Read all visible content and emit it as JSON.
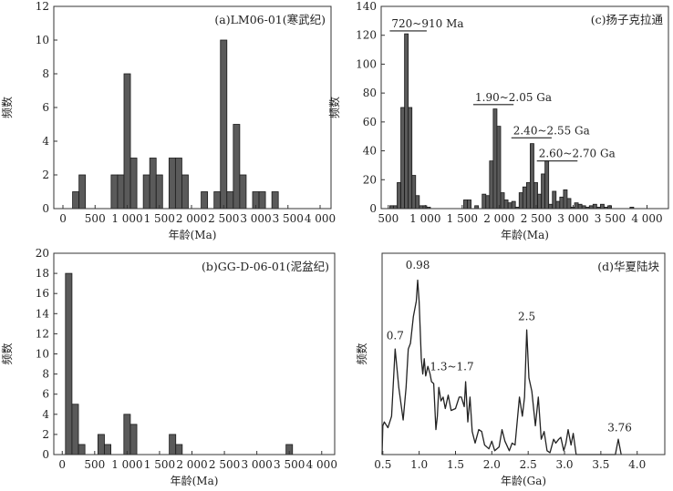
{
  "chart_data": [
    {
      "id": "a",
      "type": "bar",
      "title": "(a)LM06-01(寒武纪)",
      "xlabel": "年龄(Ma)",
      "ylabel": "频数",
      "xlim": [
        -142,
        4170
      ],
      "ylim": [
        0,
        12
      ],
      "bin_width": 100,
      "xticks": [
        0,
        500,
        1000,
        1500,
        2000,
        2500,
        3000,
        3500,
        4000
      ],
      "xtick_labels": [
        "0",
        "500",
        "1 000",
        "1 500",
        "2 000",
        "2 500",
        "3 000",
        "3 500",
        "4 000"
      ],
      "yticks": [
        0,
        2,
        4,
        6,
        8,
        10,
        12
      ],
      "x": [
        200,
        300,
        800,
        900,
        1000,
        1100,
        1300,
        1400,
        1500,
        1700,
        1800,
        1900,
        2200,
        2400,
        2500,
        2600,
        2700,
        2800,
        3000,
        3100,
        3300
      ],
      "values": [
        1,
        2,
        2,
        2,
        8,
        3,
        2,
        3,
        2,
        3,
        3,
        2,
        1,
        1,
        10,
        1,
        5,
        2,
        1,
        1,
        1
      ]
    },
    {
      "id": "c",
      "type": "bar",
      "title": "(c)扬子克拉通",
      "xlabel": "年龄(Ma)",
      "ylabel": "频数",
      "xlim": [
        404,
        4290
      ],
      "ylim": [
        0,
        140
      ],
      "bin_width": 50,
      "xticks": [
        500,
        1000,
        1500,
        2000,
        2500,
        3000,
        3500,
        4000
      ],
      "xtick_labels": [
        "500",
        "1 000",
        "1 500",
        "2 000",
        "2 500",
        "3 000",
        "3 500",
        "4 000"
      ],
      "yticks": [
        0,
        20,
        40,
        60,
        80,
        100,
        120,
        140
      ],
      "x": [
        545,
        595,
        645,
        695,
        745,
        795,
        845,
        895,
        945,
        995,
        1045,
        1545,
        1595,
        1695,
        1795,
        1845,
        1895,
        1945,
        1995,
        2045,
        2095,
        2145,
        2195,
        2245,
        2295,
        2345,
        2395,
        2445,
        2495,
        2545,
        2595,
        2645,
        2695,
        2745,
        2795,
        2845,
        2895,
        2945,
        2995,
        3045,
        3095,
        3145,
        3195,
        3245,
        3295,
        3345,
        3395,
        3445,
        3495,
        3795
      ],
      "values": [
        2,
        2,
        18,
        70,
        121,
        70,
        23,
        9,
        2,
        2,
        1,
        6,
        6,
        2,
        10,
        9,
        33,
        69,
        57,
        11,
        6,
        4,
        5,
        1,
        11,
        15,
        18,
        45,
        18,
        10,
        24,
        33,
        3,
        12,
        5,
        8,
        13,
        7,
        1,
        4,
        3,
        2,
        1,
        2,
        3,
        1,
        3,
        1,
        2,
        1
      ],
      "annotations": [
        {
          "text": "720~910 Ma",
          "range": [
            520,
            1020
          ],
          "y": 123
        },
        {
          "text": "1.90~2.05 Ga",
          "range": [
            1650,
            2195
          ],
          "y": 72
        },
        {
          "text": "2.40~2.55 Ga",
          "range": [
            2165,
            2710
          ],
          "y": 49
        },
        {
          "text": "2.60~2.70 Ga",
          "range": [
            2510,
            3060
          ],
          "y": 33
        }
      ]
    },
    {
      "id": "b",
      "type": "bar",
      "title": "(b)GG-D-06-01(泥盆纪)",
      "xlabel": "年龄(Ma)",
      "ylabel": "频数",
      "xlim": [
        -130,
        4200
      ],
      "ylim": [
        0,
        20
      ],
      "bin_width": 100,
      "xticks": [
        0,
        500,
        1000,
        1500,
        2000,
        2500,
        3000,
        3500,
        4000
      ],
      "xtick_labels": [
        "0",
        "500",
        "1 000",
        "1 500",
        "2 000",
        "2 500",
        "3 000",
        "3 500",
        "4 000"
      ],
      "yticks": [
        0,
        2,
        4,
        6,
        8,
        10,
        12,
        14,
        16,
        18,
        20
      ],
      "x": [
        100,
        200,
        300,
        600,
        700,
        1000,
        1100,
        1700,
        1800,
        3500
      ],
      "values": [
        18,
        5,
        1,
        2,
        1,
        4,
        3,
        2,
        1,
        1
      ]
    },
    {
      "id": "d",
      "type": "line",
      "title": "(d)华夏陆块",
      "xlabel": "年龄(Ga)",
      "ylabel": "频数",
      "xlim": [
        0.49,
        4.38
      ],
      "ylim": [
        0,
        1.05
      ],
      "xticks": [
        0.5,
        1.0,
        1.5,
        2.0,
        2.5,
        3.0,
        3.5,
        4.0
      ],
      "xtick_labels": [
        "0.5",
        "1.0",
        "1.5",
        "2.0",
        "2.5",
        "3.0",
        "3.5",
        "4.0"
      ],
      "x": [
        0.49,
        0.5,
        0.52,
        0.57,
        0.62,
        0.67,
        0.72,
        0.78,
        0.82,
        0.85,
        0.88,
        0.92,
        0.96,
        0.98,
        1.0,
        1.03,
        1.05,
        1.07,
        1.09,
        1.12,
        1.15,
        1.17,
        1.2,
        1.23,
        1.25,
        1.27,
        1.3,
        1.33,
        1.36,
        1.4,
        1.44,
        1.5,
        1.55,
        1.58,
        1.62,
        1.64,
        1.67,
        1.7,
        1.73,
        1.77,
        1.82,
        1.86,
        1.9,
        1.96,
        2.0,
        2.04,
        2.1,
        2.14,
        2.18,
        2.24,
        2.28,
        2.32,
        2.38,
        2.42,
        2.45,
        2.48,
        2.51,
        2.55,
        2.6,
        2.64,
        2.68,
        2.72,
        2.76,
        2.8,
        2.85,
        2.88,
        2.92,
        2.95,
        2.99,
        3.02,
        3.05,
        3.09,
        3.12,
        3.16,
        3.7,
        3.72,
        3.74,
        3.76,
        3.78
      ],
      "y": [
        0,
        0.15,
        0.17,
        0.14,
        0.2,
        0.55,
        0.35,
        0.18,
        0.35,
        0.55,
        0.58,
        0.72,
        0.8,
        0.91,
        0.8,
        0.5,
        0.42,
        0.5,
        0.41,
        0.46,
        0.42,
        0.38,
        0.37,
        0.13,
        0.2,
        0.35,
        0.28,
        0.3,
        0.24,
        0.31,
        0.23,
        0.24,
        0.3,
        0.3,
        0.25,
        0.38,
        0.17,
        0.3,
        0.12,
        0.06,
        0.13,
        0.12,
        0.05,
        0.03,
        0.07,
        0.02,
        0.04,
        0.13,
        0.07,
        0.02,
        0.06,
        0.05,
        0.3,
        0.2,
        0.3,
        0.65,
        0.4,
        0.33,
        0.15,
        0.3,
        0.08,
        0.12,
        0.02,
        0.01,
        0.08,
        0.06,
        0.08,
        0.09,
        0.02,
        0.06,
        0.13,
        0.05,
        0.11,
        0,
        0,
        0.04,
        0.08,
        0.04,
        0
      ],
      "peak_labels": [
        {
          "text": "0.7",
          "x": 0.67,
          "y": 0.6
        },
        {
          "text": "0.98",
          "x": 0.98,
          "y": 0.97
        },
        {
          "text": "1.3~1.7",
          "x": 1.45,
          "y": 0.44
        },
        {
          "text": "2.5",
          "x": 2.48,
          "y": 0.7
        },
        {
          "text": "3.76",
          "x": 3.76,
          "y": 0.12
        }
      ]
    }
  ]
}
